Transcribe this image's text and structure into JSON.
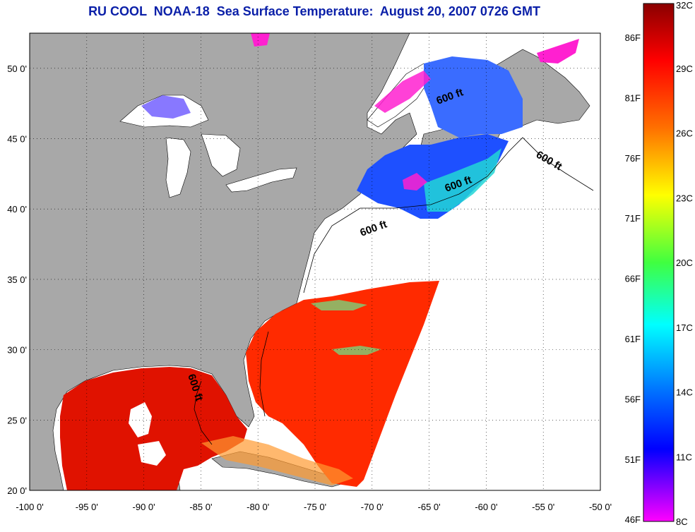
{
  "title": "RU COOL  NOAA-18  Sea Surface Temperature:  August 20, 2007 0726 GMT",
  "map": {
    "lon_range": [
      -100,
      -50
    ],
    "lat_range": [
      20,
      52.5
    ],
    "lon_ticks": [
      "-100 0'",
      "-95 0'",
      "-90 0'",
      "-85 0'",
      "-80 0'",
      "-75 0'",
      "-70 0'",
      "-65 0'",
      "-60 0'",
      "-55 0'",
      "-50 0'"
    ],
    "lat_ticks": [
      "20 0'",
      "25 0'",
      "30 0'",
      "35 0'",
      "40 0'",
      "45 0'",
      "50 0'"
    ],
    "contour_label": "600 ft",
    "colors": {
      "land": "#a8a8a8",
      "cloud_mask": "#ffffff",
      "warm_sst": "#ff2a00",
      "gulf_sst": "#e01200",
      "cool_sst": "#1e50ff",
      "cold_sst": "#ff20d0"
    }
  },
  "colorbar": {
    "celsius_labels": [
      "32C",
      "29C",
      "26C",
      "23C",
      "20C",
      "17C",
      "14C",
      "11C",
      "8C"
    ],
    "fahrenheit_labels": [
      "86F",
      "81F",
      "76F",
      "71F",
      "66F",
      "61F",
      "56F",
      "51F",
      "46F"
    ],
    "gradient": [
      "#8a0000",
      "#ff0000",
      "#ff8000",
      "#ffff00",
      "#00ff80",
      "#00ffff",
      "#0080ff",
      "#0000ff",
      "#ff00ff"
    ]
  }
}
